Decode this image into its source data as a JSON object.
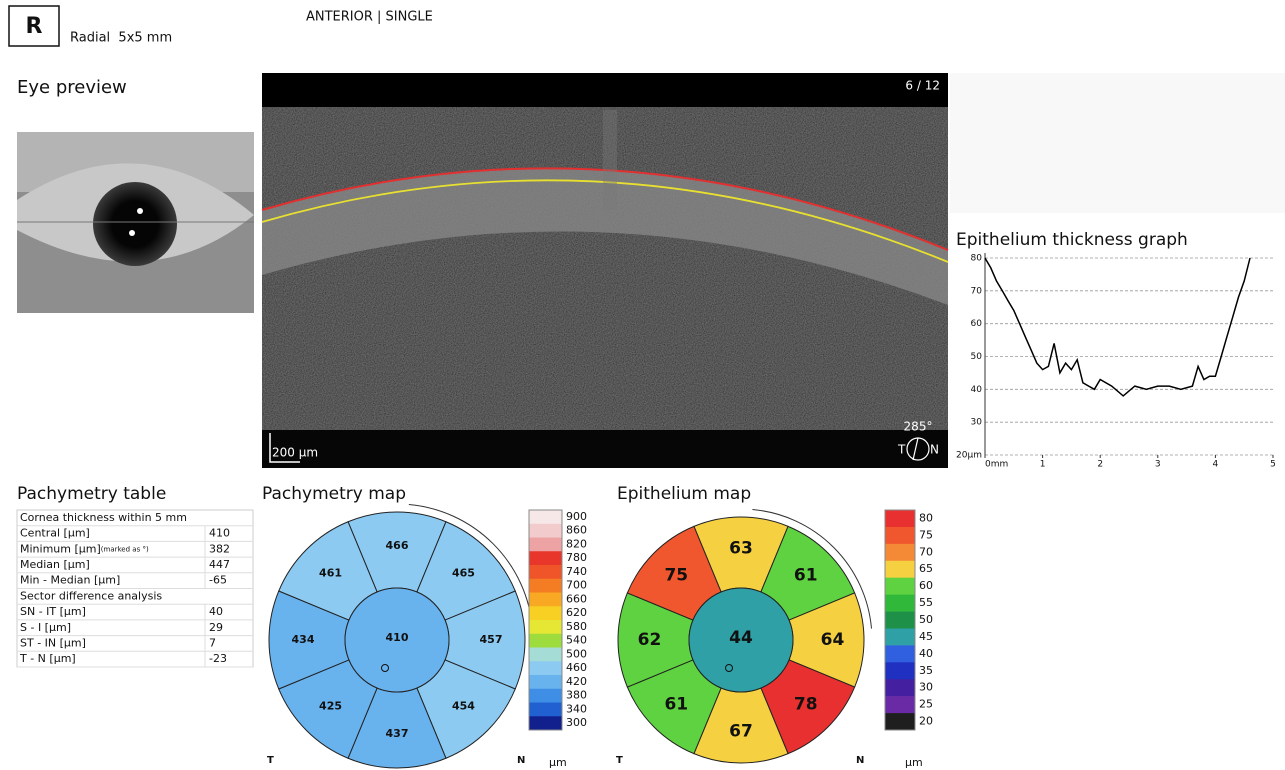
{
  "header": {
    "eye": "R",
    "scan": "Radial  5x5 mm",
    "mode": "ANTERIOR | SINGLE"
  },
  "eye_preview": {
    "title": "Eye preview"
  },
  "oct_scan": {
    "frame": "6 / 12",
    "scale_bar": "200 µm",
    "angle": "285°",
    "left": "T",
    "right": "N"
  },
  "chart_data": {
    "type": "line",
    "title": "Epithelium thickness graph",
    "color": "#000000",
    "grid": true,
    "x": [
      0,
      0.1,
      0.2,
      0.3,
      0.4,
      0.5,
      0.6,
      0.7,
      0.8,
      0.9,
      1.0,
      1.1,
      1.2,
      1.3,
      1.4,
      1.5,
      1.6,
      1.7,
      1.8,
      1.9,
      2.0,
      2.2,
      2.4,
      2.6,
      2.8,
      3.0,
      3.2,
      3.4,
      3.6,
      3.7,
      3.8,
      3.9,
      4.0,
      4.1,
      4.2,
      4.3,
      4.4,
      4.5,
      4.6
    ],
    "values": [
      80,
      77,
      73,
      70,
      67,
      64,
      60,
      56,
      52,
      48,
      46,
      47,
      54,
      45,
      48,
      46,
      49,
      42,
      41,
      40,
      43,
      41,
      38,
      41,
      40,
      41,
      41,
      40,
      41,
      47,
      43,
      44,
      44,
      50,
      56,
      62,
      68,
      73,
      80
    ],
    "xlim": [
      0,
      5
    ],
    "ylim": [
      20,
      80
    ],
    "xticks": [
      {
        "value": 0,
        "label": "0mm"
      },
      1,
      2,
      3,
      4,
      5
    ],
    "yticks": [
      {
        "value": 20,
        "label": "20µm"
      },
      30,
      40,
      50,
      60,
      70,
      80
    ]
  },
  "pachymetry_table": {
    "title": "Pachymetry table",
    "sections": [
      {
        "heading": "Cornea thickness within 5 mm",
        "rows": [
          {
            "label": "Central [µm]",
            "value": 410
          },
          {
            "label": "Minimum [µm]",
            "note": "(marked as °)",
            "value": 382
          },
          {
            "label": "Median [µm]",
            "value": 447
          },
          {
            "label": "Min - Median [µm]",
            "value": -65
          }
        ]
      },
      {
        "heading": "Sector difference analysis",
        "rows": [
          {
            "label": "SN - IT [µm]",
            "value": 40
          },
          {
            "label": "S - I [µm]",
            "value": 29
          },
          {
            "label": "ST - IN [µm]",
            "value": 7
          },
          {
            "label": "T - N [µm]",
            "value": -23
          }
        ]
      }
    ]
  },
  "pachymetry_map": {
    "title": "Pachymetry map",
    "center": 410,
    "sectors": [
      466,
      465,
      457,
      454,
      437,
      425,
      434,
      461
    ],
    "left": "T",
    "right": "N",
    "unit": "µm",
    "scale": {
      "values": [
        900,
        860,
        820,
        780,
        740,
        700,
        660,
        620,
        580,
        540,
        500,
        460,
        420,
        380,
        340,
        300
      ],
      "colors": [
        "#f6e8e8",
        "#f2cccc",
        "#eda3a3",
        "#e8362a",
        "#f0552a",
        "#f47c22",
        "#f8a822",
        "#f8d024",
        "#e6e634",
        "#9edc3e",
        "#a6dcd6",
        "#8ccaf2",
        "#68b2ee",
        "#3e8ee6",
        "#2060d0",
        "#12208e"
      ]
    }
  },
  "epithelium_map": {
    "title": "Epithelium map",
    "center": 44,
    "sectors": [
      63,
      61,
      64,
      78,
      67,
      61,
      62,
      75
    ],
    "left": "T",
    "right": "N",
    "unit": "µm",
    "scale": {
      "values": [
        80,
        75,
        70,
        65,
        60,
        55,
        50,
        45,
        40,
        35,
        30,
        25,
        20
      ],
      "colors": [
        "#e83030",
        "#f0572e",
        "#f58a36",
        "#f5d040",
        "#5ed240",
        "#30b83a",
        "#1e9048",
        "#2ea0a6",
        "#3060e0",
        "#2030c0",
        "#4420a0",
        "#6a2aa6",
        "#1e1e1e"
      ]
    }
  }
}
